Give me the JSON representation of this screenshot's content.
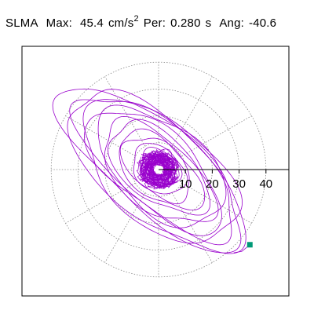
{
  "header": {
    "station": "SLMA",
    "max_label": "Max:",
    "max_value": "45.4",
    "max_unit": "cm/s",
    "max_unit_exp": "2",
    "per_label": "Per:",
    "per_value": "0.280",
    "per_unit": "s",
    "ang_label": "Ang:",
    "ang_value": "-40.6"
  },
  "chart_data": {
    "type": "polar-particle-motion",
    "title": "SLMA Max: 45.4 cm/s2 Per: 0.280 s Ang: -40.6",
    "radial_ticks": [
      10,
      20,
      30,
      40
    ],
    "radial_rings": [
      10,
      20,
      30,
      40
    ],
    "rmax": 40,
    "grid": "dotted",
    "angular_spokes_deg": [
      0,
      30,
      60,
      90,
      120,
      150,
      180,
      210,
      240,
      270,
      300,
      330
    ],
    "trace": {
      "description_values": "superposed elliptical loops of acceleration with major axis along direction -40.6 deg",
      "orientation_deg": -40.6,
      "loops": [
        {
          "a": 43.0,
          "b": 16.0,
          "cx": -2.0,
          "cy": 1.0
        },
        {
          "a": 40.0,
          "b": 18.0,
          "cx": -1.0,
          "cy": -0.5
        },
        {
          "a": 37.0,
          "b": 15.0,
          "cx": -0.5,
          "cy": 1.5
        },
        {
          "a": 34.0,
          "b": 19.0,
          "cx": 0.5,
          "cy": -1.0
        },
        {
          "a": 31.0,
          "b": 14.0,
          "cx": -1.5,
          "cy": 0.0
        },
        {
          "a": 28.0,
          "b": 16.0,
          "cx": 1.0,
          "cy": 1.0
        },
        {
          "a": 25.0,
          "b": 13.0,
          "cx": -0.5,
          "cy": -1.5
        },
        {
          "a": 22.0,
          "b": 12.0,
          "cx": 0.0,
          "cy": 0.5
        },
        {
          "a": 19.0,
          "b": 10.0,
          "cx": 0.5,
          "cy": -0.5
        },
        {
          "a": 15.0,
          "b": 9.0,
          "cx": -0.5,
          "cy": 0.5
        },
        {
          "a": 11.0,
          "b": 8.0,
          "cx": 0.0,
          "cy": 0.0
        },
        {
          "a": 8.0,
          "b": 6.5,
          "cx": 0.5,
          "cy": 0.5
        },
        {
          "a": 6.0,
          "b": 5.0,
          "cx": -0.5,
          "cy": -0.5
        },
        {
          "a": 4.5,
          "b": 4.0,
          "cx": 0.0,
          "cy": 0.0
        }
      ],
      "end_point": {
        "x": 34.0,
        "y": -28.0
      }
    },
    "colors": {
      "trace": "#9900cc",
      "end_marker": "#009977",
      "grid": "#888888",
      "axis": "#000000"
    }
  }
}
